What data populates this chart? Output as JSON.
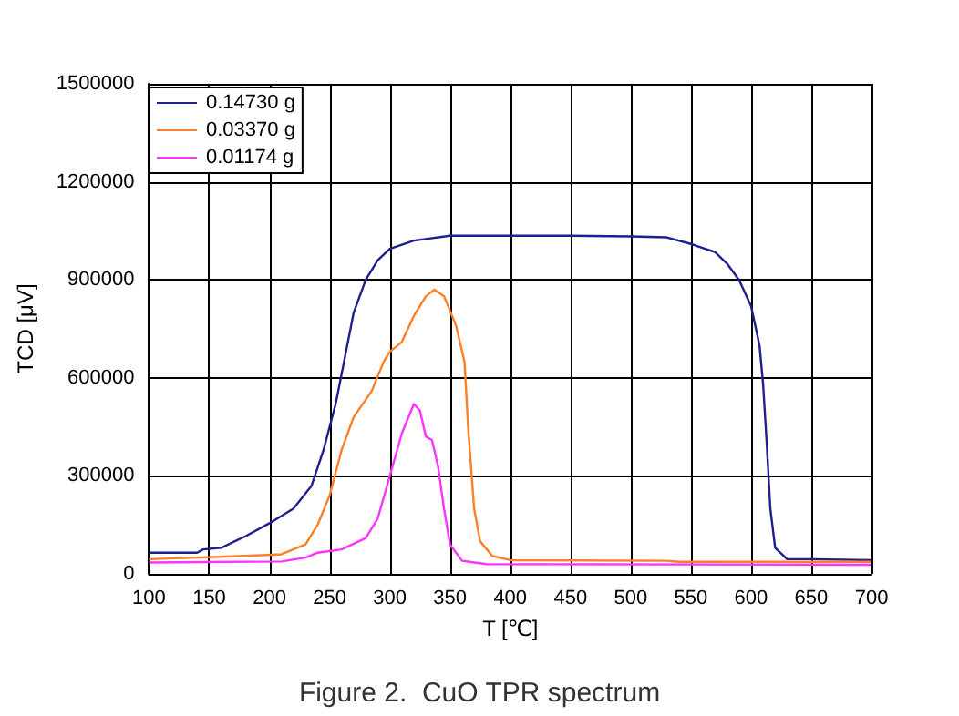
{
  "chart_data": {
    "type": "line",
    "title": "Figure 2.  CuO TPR spectrum",
    "xlabel": "T [℃]",
    "ylabel": "TCD [μV]",
    "xlim": [
      100,
      700
    ],
    "xticks": [
      100,
      150,
      200,
      250,
      300,
      350,
      400,
      450,
      500,
      550,
      600,
      650,
      700
    ],
    "ylim": [
      0,
      1500000
    ],
    "yticks": [
      0,
      300000,
      600000,
      900000,
      1200000,
      1500000
    ],
    "grid": true,
    "legend": "top left",
    "marker": "none",
    "line_style": "solid",
    "series": [
      {
        "name": "0.14730 g",
        "color": "#1f1f8f",
        "x": [
          100,
          140,
          145,
          160,
          180,
          200,
          220,
          235,
          245,
          255,
          262,
          270,
          280,
          290,
          300,
          320,
          350,
          400,
          450,
          500,
          530,
          550,
          570,
          580,
          590,
          600,
          607,
          610,
          613,
          616,
          620,
          630,
          650,
          700
        ],
        "values": [
          65000,
          65000,
          75000,
          80000,
          115000,
          155000,
          200000,
          270000,
          380000,
          520000,
          650000,
          800000,
          900000,
          960000,
          995000,
          1020000,
          1035000,
          1035000,
          1035000,
          1033000,
          1030000,
          1010000,
          985000,
          950000,
          900000,
          820000,
          700000,
          580000,
          400000,
          200000,
          80000,
          45000,
          45000,
          42000
        ]
      },
      {
        "name": "0.03370 g",
        "color": "#ff7f27",
        "x": [
          100,
          180,
          210,
          230,
          240,
          250,
          260,
          270,
          285,
          295,
          300,
          310,
          320,
          330,
          337,
          345,
          355,
          362,
          365,
          370,
          375,
          385,
          400,
          530,
          540,
          700
        ],
        "values": [
          45000,
          55000,
          60000,
          90000,
          150000,
          240000,
          380000,
          480000,
          560000,
          650000,
          680000,
          710000,
          790000,
          850000,
          870000,
          850000,
          760000,
          650000,
          450000,
          200000,
          100000,
          55000,
          42000,
          40000,
          37000,
          37000
        ]
      },
      {
        "name": "0.01174 g",
        "color": "#ff33ff",
        "x": [
          100,
          210,
          230,
          240,
          260,
          280,
          290,
          300,
          310,
          320,
          325,
          330,
          335,
          340,
          345,
          350,
          360,
          380,
          700
        ],
        "values": [
          35000,
          38000,
          50000,
          65000,
          75000,
          110000,
          170000,
          300000,
          430000,
          520000,
          500000,
          420000,
          410000,
          330000,
          200000,
          90000,
          40000,
          30000,
          28000
        ]
      }
    ]
  }
}
